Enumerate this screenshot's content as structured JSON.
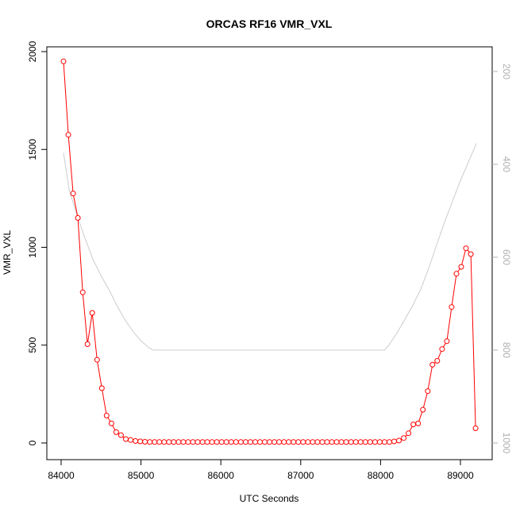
{
  "chart_data": {
    "type": "line",
    "title": "ORCAS RF16 VMR_VXL",
    "xlabel": "UTC Seconds",
    "ylabel": "VMR_VXL",
    "xlim": [
      84000,
      89400
    ],
    "ylim": [
      0,
      2000
    ],
    "y2lim": [
      1000,
      200
    ],
    "x_ticks": [
      "84000",
      "85000",
      "86000",
      "87000",
      "88000",
      "89000"
    ],
    "y_ticks": [
      "0",
      "500",
      "1000",
      "1500",
      "2000"
    ],
    "y2_ticks": [
      "1000",
      "800",
      "600",
      "400",
      "200"
    ],
    "grid": false,
    "legend": "none",
    "series": [
      {
        "color": "#ff0000",
        "marker": "open-circle",
        "axis": "left",
        "x": [
          84030,
          84090,
          84150,
          84210,
          84270,
          84330,
          84390,
          84450,
          84510,
          84570,
          84630,
          84690,
          84750,
          84810,
          84870,
          84930,
          84990,
          85050,
          85110,
          85170,
          85230,
          85290,
          85350,
          85410,
          85470,
          85530,
          85590,
          85650,
          85710,
          85770,
          85830,
          85890,
          85950,
          86010,
          86070,
          86130,
          86190,
          86250,
          86310,
          86370,
          86430,
          86490,
          86550,
          86610,
          86670,
          86730,
          86790,
          86850,
          86910,
          86970,
          87030,
          87090,
          87150,
          87210,
          87270,
          87330,
          87390,
          87450,
          87510,
          87570,
          87630,
          87690,
          87750,
          87810,
          87870,
          87930,
          87990,
          88050,
          88110,
          88170,
          88230,
          88290,
          88350,
          88410,
          88470,
          88530,
          88590,
          88650,
          88710,
          88770,
          88830,
          88890,
          88950,
          89010,
          89070,
          89130,
          89190
        ],
        "values": [
          1950,
          1575,
          1275,
          1150,
          770,
          505,
          665,
          425,
          280,
          140,
          100,
          55,
          40,
          20,
          15,
          10,
          8,
          6,
          5,
          5,
          5,
          5,
          5,
          5,
          5,
          5,
          5,
          5,
          5,
          5,
          5,
          5,
          5,
          5,
          5,
          5,
          5,
          5,
          5,
          5,
          5,
          5,
          5,
          5,
          5,
          5,
          5,
          5,
          5,
          5,
          5,
          5,
          5,
          5,
          5,
          5,
          5,
          5,
          5,
          5,
          5,
          5,
          5,
          5,
          5,
          5,
          5,
          5,
          5,
          8,
          12,
          25,
          50,
          95,
          100,
          170,
          265,
          400,
          420,
          480,
          520,
          695,
          865,
          900,
          995,
          965,
          75
        ]
      },
      {
        "color": "#cccccc",
        "marker": "none",
        "axis": "right",
        "x": [
          84030,
          84100,
          84200,
          84300,
          84400,
          84500,
          84600,
          84700,
          84800,
          84900,
          85000,
          85100,
          85150,
          85200,
          86000,
          87000,
          88000,
          88050,
          88100,
          88200,
          88300,
          88400,
          88500,
          88600,
          88700,
          88800,
          88900,
          89000,
          89100,
          89200
        ],
        "values": [
          375,
          455,
          510,
          560,
          605,
          640,
          670,
          705,
          735,
          760,
          780,
          795,
          800,
          800,
          800,
          800,
          800,
          800,
          790,
          765,
          735,
          705,
          670,
          625,
          575,
          525,
          480,
          435,
          395,
          355
        ]
      }
    ]
  }
}
